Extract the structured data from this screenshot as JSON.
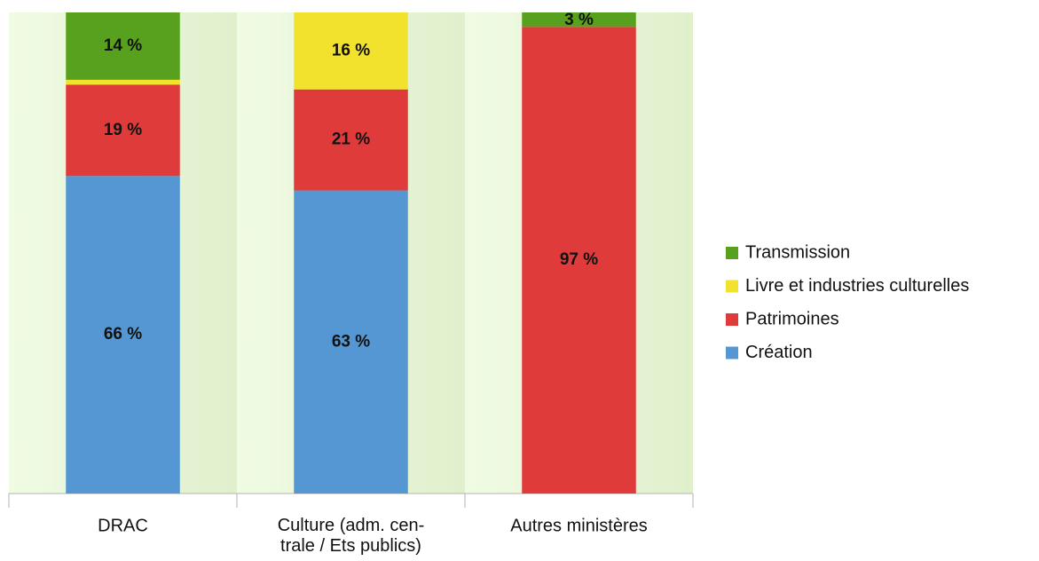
{
  "chart_data": {
    "type": "stacked_bar",
    "categories": [
      "DRAC",
      "Culture (adm. cen-\ntrale / Ets publics)",
      "Autres ministères"
    ],
    "series": [
      {
        "name": "Création",
        "color": "#5597d3",
        "values": [
          66,
          63,
          0
        ],
        "value_labels": [
          "66 %",
          "63 %",
          null
        ]
      },
      {
        "name": "Patrimoines",
        "color": "#e03b3b",
        "values": [
          19,
          21,
          97
        ],
        "value_labels": [
          "19 %",
          "21 %",
          "97 %"
        ]
      },
      {
        "name": "Livre et industries culturelles",
        "color": "#f2e22e",
        "values": [
          1,
          16,
          0
        ],
        "value_labels": [
          null,
          "16 %",
          null
        ]
      },
      {
        "name": "Transmission",
        "color": "#57a11f",
        "values": [
          14,
          0,
          3
        ],
        "value_labels": [
          "14 %",
          null,
          "3 %"
        ]
      }
    ],
    "ylim": [
      0,
      100
    ],
    "legend": "right"
  }
}
